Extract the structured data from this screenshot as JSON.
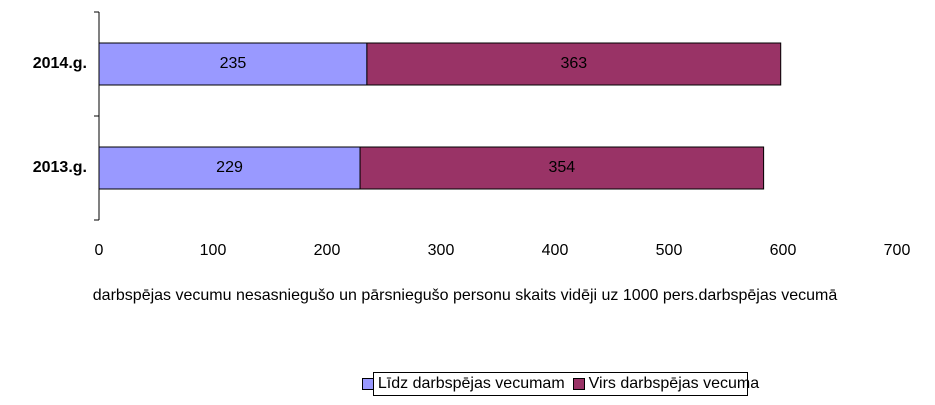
{
  "chart_data": {
    "type": "stacked_barh",
    "categories": [
      "2013.g.",
      "2014.g."
    ],
    "series": [
      {
        "name": "Līdz darbspējas vecumam",
        "color": "#9999ff",
        "values": [
          229,
          235
        ]
      },
      {
        "name": "Virs darbspējas vecuma",
        "color": "#993366",
        "values": [
          354,
          363
        ]
      }
    ],
    "x_label": "darbspējas vecumu nesasniegušo un pārsniegušo personu skaits vidēji uz 1000 pers.darbspējas vecumā",
    "xlim": [
      0,
      700
    ],
    "xticks": [
      0,
      100,
      200,
      300,
      400,
      500,
      600,
      700
    ],
    "legend": "bottom"
  }
}
